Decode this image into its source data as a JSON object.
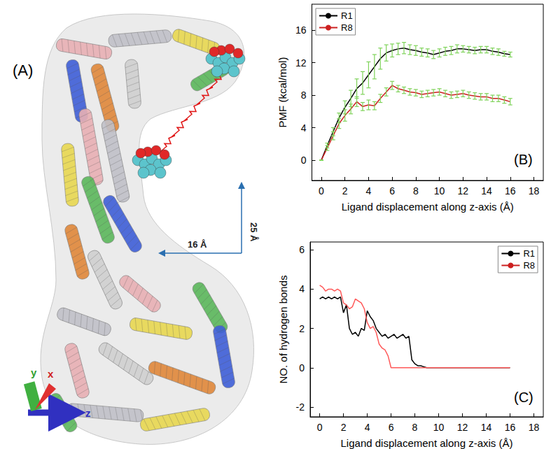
{
  "panel_a": {
    "label": "(A)",
    "annotations": [
      "25 Å",
      "16 Å"
    ],
    "axes": [
      "x",
      "y",
      "z"
    ]
  },
  "chart_data": [
    {
      "type": "line",
      "annotations": [
        "(B)"
      ],
      "x_label": "Ligand displacement along z-axis (Å)",
      "y_label": "PMF (kcal/mol)",
      "x": [
        0,
        0.5,
        1,
        1.5,
        2,
        2.5,
        3,
        3.5,
        4,
        4.5,
        5,
        5.5,
        6,
        6.5,
        7,
        7.5,
        8,
        8.5,
        9,
        9.5,
        10,
        10.5,
        11,
        11.5,
        12,
        12.5,
        13,
        13.5,
        14,
        14.5,
        15,
        15.5,
        16
      ],
      "series": [
        {
          "name": "R1",
          "color": "#000000",
          "values": [
            0,
            1.8,
            3.5,
            5.2,
            6.5,
            7.6,
            8.8,
            9.5,
            10.5,
            11.5,
            12.5,
            13.2,
            13.5,
            13.7,
            13.8,
            13.6,
            13.5,
            13.3,
            13.2,
            13.0,
            13.2,
            13.4,
            13.5,
            13.7,
            13.7,
            13.6,
            13.5,
            13.6,
            13.6,
            13.4,
            13.3,
            13.1,
            13.0
          ],
          "errors": [
            0,
            0.3,
            0.5,
            0.6,
            0.8,
            1.0,
            1.2,
            1.4,
            1.6,
            1.5,
            1.3,
            1.0,
            0.8,
            0.7,
            0.7,
            0.6,
            0.6,
            0.5,
            0.5,
            0.5,
            0.5,
            0.5,
            0.5,
            0.5,
            0.4,
            0.4,
            0.4,
            0.4,
            0.4,
            0.4,
            0.4,
            0.3,
            0.3
          ]
        },
        {
          "name": "R8",
          "color": "#cc2020",
          "values": [
            0,
            1.5,
            3.0,
            4.5,
            5.5,
            6.3,
            7.2,
            6.6,
            6.8,
            6.7,
            7.6,
            8.4,
            9.2,
            8.8,
            8.6,
            8.4,
            8.3,
            8.1,
            8.2,
            8.3,
            8.4,
            8.2,
            8.0,
            8.1,
            8.2,
            8.0,
            7.9,
            7.8,
            7.8,
            7.6,
            7.6,
            7.4,
            7.2
          ],
          "errors": [
            0,
            0.3,
            0.5,
            0.6,
            0.7,
            0.6,
            0.6,
            0.5,
            0.6,
            0.5,
            0.5,
            0.5,
            0.5,
            0.4,
            0.4,
            0.4,
            0.4,
            0.4,
            0.4,
            0.4,
            0.4,
            0.4,
            0.4,
            0.4,
            0.4,
            0.4,
            0.4,
            0.4,
            0.4,
            0.4,
            0.4,
            0.4,
            0.4
          ]
        }
      ],
      "xlim": [
        -0.8,
        18.8
      ],
      "xticks": [
        0,
        2,
        4,
        6,
        8,
        10,
        12,
        14,
        16,
        18
      ],
      "ylim": [
        -2.5,
        19.2
      ],
      "yticks": [
        0,
        4,
        8,
        12,
        16
      ],
      "grid": false,
      "legend": "upper left"
    },
    {
      "type": "line",
      "annotations": [
        "(C)"
      ],
      "x_label": "Ligand displacement along z-axis (Å)",
      "y_label": "NO. of hydrogen bonds",
      "x": [
        0,
        0.25,
        0.5,
        0.75,
        1,
        1.25,
        1.5,
        1.75,
        2,
        2.25,
        2.5,
        2.75,
        3,
        3.25,
        3.5,
        3.75,
        4,
        4.25,
        4.5,
        4.75,
        5,
        5.25,
        5.5,
        5.75,
        6,
        6.25,
        6.5,
        6.75,
        7,
        7.25,
        7.5,
        7.75,
        8,
        8.25,
        8.5,
        8.75,
        9,
        9.25,
        9.5,
        9.75,
        10,
        11,
        12,
        13,
        14,
        15,
        16
      ],
      "series": [
        {
          "name": "R1",
          "color": "#000000",
          "values": [
            3.5,
            3.6,
            3.5,
            3.6,
            3.5,
            3.6,
            3.5,
            3.6,
            2.8,
            3.2,
            2.0,
            1.7,
            1.8,
            1.6,
            2.0,
            1.9,
            2.9,
            2.6,
            2.4,
            2.0,
            1.8,
            1.6,
            1.7,
            1.5,
            1.6,
            1.7,
            1.5,
            1.6,
            1.7,
            1.5,
            1.6,
            0.4,
            0.2,
            0.1,
            0.1,
            0.05,
            0,
            0,
            0,
            0,
            0,
            0,
            0,
            0,
            0,
            0,
            0
          ]
        },
        {
          "name": "R8",
          "color": "#ff5a5a",
          "values": [
            4.2,
            4.1,
            3.9,
            4.0,
            4.0,
            3.9,
            4.0,
            3.9,
            3.3,
            3.2,
            3.0,
            3.1,
            3.5,
            3.4,
            3.3,
            3.0,
            2.3,
            2.0,
            2.1,
            1.8,
            1.2,
            1.0,
            0.9,
            0.6,
            0,
            0,
            0,
            0,
            0,
            0,
            0,
            0,
            0,
            0,
            0,
            0,
            0,
            0,
            0,
            0,
            0,
            0,
            0,
            0,
            0,
            0,
            0
          ]
        }
      ],
      "xlim": [
        -0.8,
        18.8
      ],
      "xticks": [
        0,
        2,
        4,
        6,
        8,
        10,
        12,
        14,
        16,
        18
      ],
      "ylim": [
        -2.5,
        6.4
      ],
      "yticks": [
        -2,
        0,
        2,
        4,
        6
      ],
      "grid": false,
      "legend": "upper right"
    }
  ]
}
